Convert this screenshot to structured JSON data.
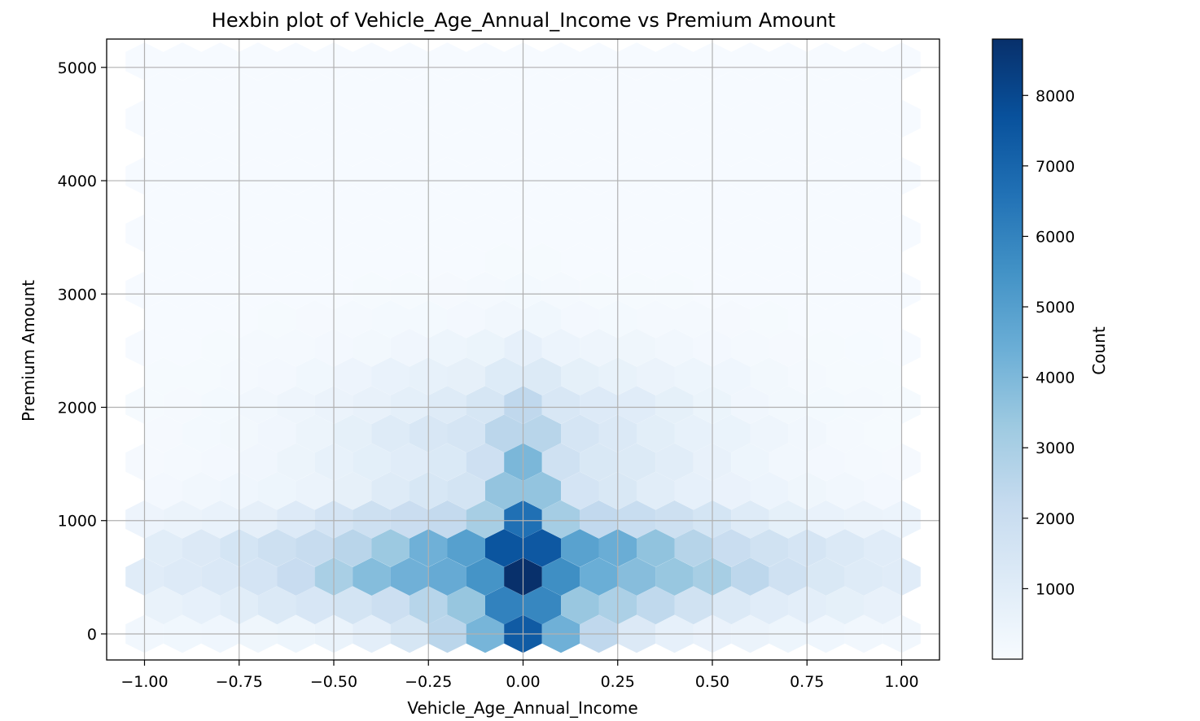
{
  "chart_data": {
    "type": "heatmap",
    "subtype": "hexbin",
    "title": "Hexbin plot of Vehicle_Age_Annual_Income vs Premium Amount",
    "xlabel": "Vehicle_Age_Annual_Income",
    "ylabel": "Premium Amount",
    "xlim": [
      -1.1,
      1.1
    ],
    "ylim": [
      -230,
      5250
    ],
    "xticks": [
      -1.0,
      -0.75,
      -0.5,
      -0.25,
      0.0,
      0.25,
      0.5,
      0.75,
      1.0
    ],
    "xtick_labels": [
      "−1.00",
      "−0.75",
      "−0.50",
      "−0.25",
      "0.00",
      "0.25",
      "0.50",
      "0.75",
      "1.00"
    ],
    "yticks": [
      0,
      1000,
      2000,
      3000,
      4000,
      5000
    ],
    "ytick_labels": [
      "0",
      "1000",
      "2000",
      "3000",
      "4000",
      "5000"
    ],
    "grid": true,
    "colormap": "Blues",
    "colorbar": {
      "label": "Count",
      "range": [
        0,
        8800
      ],
      "ticks": [
        1000,
        2000,
        3000,
        4000,
        5000,
        6000,
        7000,
        8000
      ],
      "tick_labels": [
        "1000",
        "2000",
        "3000",
        "4000",
        "5000",
        "6000",
        "7000",
        "8000"
      ]
    },
    "hex_grid": {
      "x_range": [
        -1.0,
        1.0
      ],
      "y_range": [
        0,
        5000
      ],
      "columns": 20,
      "y_step": 252.6
    },
    "density_peak": {
      "x": 0.0,
      "y": 680,
      "max_count": 8800
    },
    "strong_bins": [
      {
        "x": -0.025,
        "y": 760,
        "count": 8600
      },
      {
        "x": 0.025,
        "y": 760,
        "count": 8800
      },
      {
        "x": -0.025,
        "y": 510,
        "count": 8500
      },
      {
        "x": 0.025,
        "y": 510,
        "count": 8300
      },
      {
        "x": -0.025,
        "y": 0,
        "count": 7600
      },
      {
        "x": 0.025,
        "y": 0,
        "count": 8000
      },
      {
        "x": -0.025,
        "y": 250,
        "count": 8100
      },
      {
        "x": 0.025,
        "y": 250,
        "count": 6600
      },
      {
        "x": -0.15,
        "y": 630,
        "count": 7600
      },
      {
        "x": -0.05,
        "y": 630,
        "count": 7200
      },
      {
        "x": 0.15,
        "y": 630,
        "count": 7400
      },
      {
        "x": 0.05,
        "y": 630,
        "count": 7100
      }
    ]
  }
}
